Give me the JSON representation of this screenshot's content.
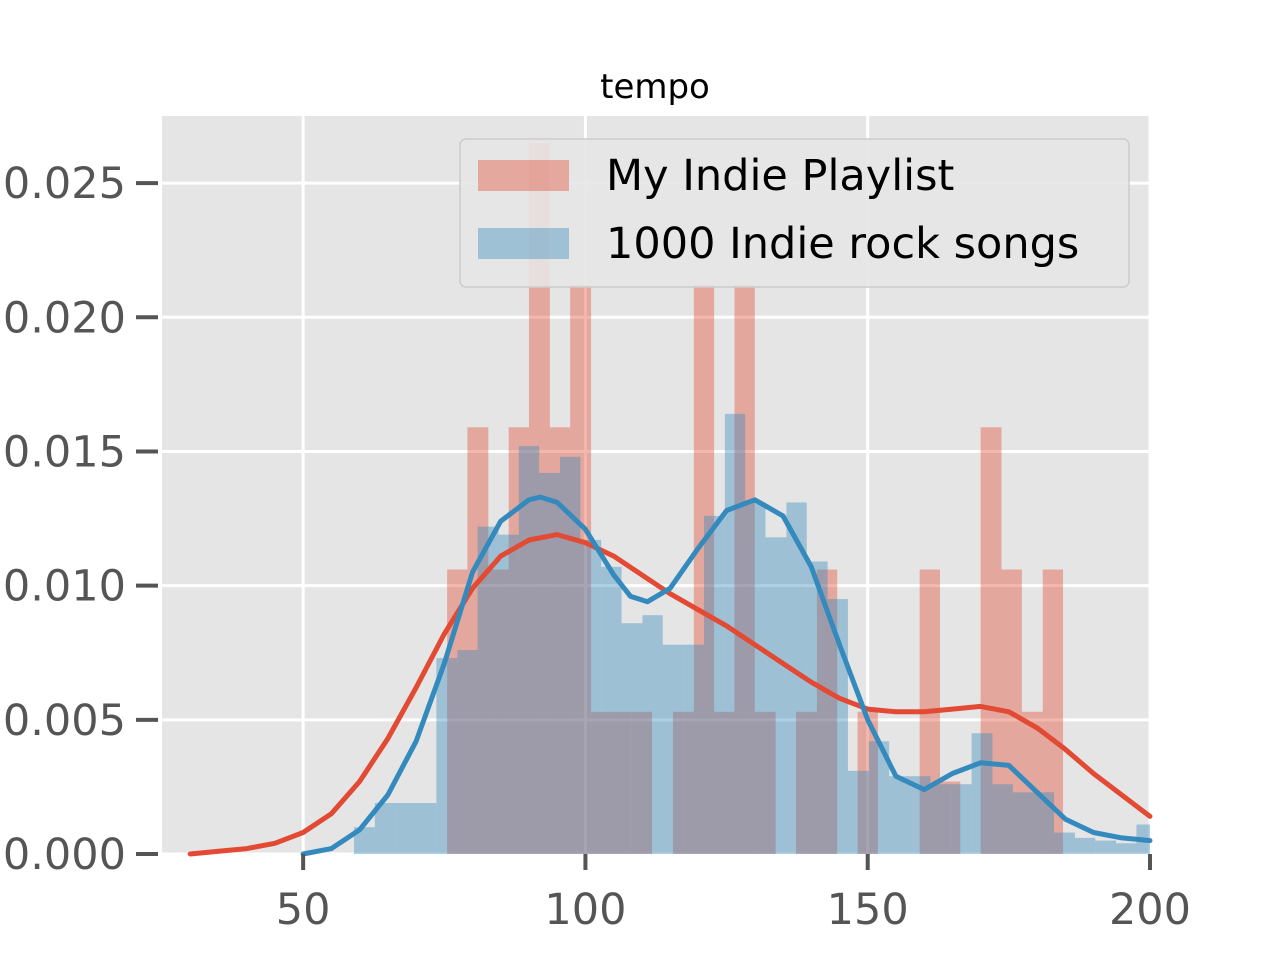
{
  "chart_data": {
    "type": "histogram",
    "title": "tempo",
    "xlabel": "",
    "ylabel": "",
    "xlim": [
      25,
      200
    ],
    "ylim": [
      0,
      0.0275
    ],
    "x_ticks": [
      50,
      100,
      150,
      200
    ],
    "x_tick_labels": [
      "50",
      "100",
      "150",
      "200"
    ],
    "y_ticks": [
      0,
      0.005,
      0.01,
      0.015,
      0.02,
      0.025
    ],
    "y_tick_labels": [
      "0.000",
      "0.005",
      "0.010",
      "0.015",
      "0.020",
      "0.025"
    ],
    "grid": true,
    "legend_position": "upper right",
    "series": [
      {
        "name": "My Indie Playlist",
        "color": "#E24A33",
        "bins": [
          [
            75.5,
            79.1,
            0.0106
          ],
          [
            79.1,
            82.8,
            0.0159
          ],
          [
            82.8,
            86.4,
            0.0106
          ],
          [
            86.4,
            90.0,
            0.0159
          ],
          [
            90.0,
            93.7,
            0.0265
          ],
          [
            93.7,
            97.3,
            0.0159
          ],
          [
            97.3,
            101.0,
            0.0212
          ],
          [
            101.0,
            104.6,
            0.0053
          ],
          [
            104.6,
            108.2,
            0.0053
          ],
          [
            108.2,
            111.8,
            0.0053
          ],
          [
            115.5,
            119.2,
            0.0053
          ],
          [
            119.2,
            122.8,
            0.0212
          ],
          [
            122.8,
            126.4,
            0.0053
          ],
          [
            126.4,
            130.0,
            0.0212
          ],
          [
            130.0,
            133.7,
            0.0053
          ],
          [
            137.3,
            141.0,
            0.0053
          ],
          [
            141.0,
            144.6,
            0.0106
          ],
          [
            148.2,
            151.8,
            0.0053
          ],
          [
            159.2,
            162.8,
            0.0106
          ],
          [
            162.8,
            166.4,
            0.0027
          ],
          [
            170.0,
            173.7,
            0.0159
          ],
          [
            173.7,
            177.3,
            0.0106
          ],
          [
            177.3,
            181.0,
            0.0053
          ],
          [
            181.0,
            184.6,
            0.0106
          ]
        ],
        "kde": [
          [
            30,
            0.0
          ],
          [
            35,
            0.0001
          ],
          [
            40,
            0.0002
          ],
          [
            45,
            0.0004
          ],
          [
            50,
            0.0008
          ],
          [
            55,
            0.0015
          ],
          [
            60,
            0.0027
          ],
          [
            65,
            0.0043
          ],
          [
            70,
            0.0062
          ],
          [
            75,
            0.0082
          ],
          [
            80,
            0.0099
          ],
          [
            85,
            0.0111
          ],
          [
            90,
            0.0117
          ],
          [
            95,
            0.0119
          ],
          [
            100,
            0.0116
          ],
          [
            105,
            0.0111
          ],
          [
            110,
            0.0104
          ],
          [
            115,
            0.0097
          ],
          [
            120,
            0.0091
          ],
          [
            125,
            0.0085
          ],
          [
            130,
            0.0078
          ],
          [
            135,
            0.0071
          ],
          [
            140,
            0.0064
          ],
          [
            145,
            0.0058
          ],
          [
            150,
            0.0054
          ],
          [
            155,
            0.0053
          ],
          [
            160,
            0.0053
          ],
          [
            165,
            0.0054
          ],
          [
            170,
            0.0055
          ],
          [
            175,
            0.0053
          ],
          [
            180,
            0.0047
          ],
          [
            185,
            0.0039
          ],
          [
            190,
            0.003
          ],
          [
            195,
            0.0022
          ],
          [
            200,
            0.0014
          ]
        ]
      },
      {
        "name": "1000 Indie rock songs",
        "color": "#348ABD",
        "bins": [
          [
            59.0,
            62.7,
            0.001
          ],
          [
            62.7,
            66.3,
            0.0019
          ],
          [
            66.3,
            70.0,
            0.0019
          ],
          [
            70.0,
            73.6,
            0.0019
          ],
          [
            73.6,
            77.3,
            0.0073
          ],
          [
            77.3,
            80.9,
            0.0076
          ],
          [
            80.9,
            84.6,
            0.0122
          ],
          [
            84.6,
            88.2,
            0.0119
          ],
          [
            88.2,
            91.8,
            0.0152
          ],
          [
            91.8,
            95.5,
            0.0142
          ],
          [
            95.5,
            99.1,
            0.0148
          ],
          [
            99.1,
            102.8,
            0.0117
          ],
          [
            102.8,
            106.4,
            0.0107
          ],
          [
            106.4,
            110.1,
            0.0086
          ],
          [
            110.1,
            113.7,
            0.0089
          ],
          [
            113.7,
            117.4,
            0.0078
          ],
          [
            117.4,
            121.0,
            0.0078
          ],
          [
            121.0,
            124.7,
            0.0126
          ],
          [
            124.7,
            128.3,
            0.0164
          ],
          [
            128.3,
            131.9,
            0.0131
          ],
          [
            131.9,
            135.6,
            0.0118
          ],
          [
            135.6,
            139.2,
            0.0131
          ],
          [
            139.2,
            142.9,
            0.0109
          ],
          [
            142.9,
            146.5,
            0.0095
          ],
          [
            146.5,
            150.2,
            0.0031
          ],
          [
            150.2,
            153.8,
            0.0042
          ],
          [
            153.8,
            157.5,
            0.0029
          ],
          [
            157.5,
            161.1,
            0.0029
          ],
          [
            161.1,
            164.8,
            0.0026
          ],
          [
            164.8,
            168.4,
            0.0026
          ],
          [
            168.4,
            172.1,
            0.0045
          ],
          [
            172.1,
            175.7,
            0.0026
          ],
          [
            175.7,
            179.4,
            0.0023
          ],
          [
            179.4,
            183.0,
            0.0023
          ],
          [
            183.0,
            186.7,
            0.0008
          ],
          [
            186.7,
            190.3,
            0.0006
          ],
          [
            190.3,
            194.0,
            0.0005
          ],
          [
            194.0,
            197.6,
            0.0004
          ],
          [
            197.6,
            201.3,
            0.0011
          ]
        ],
        "kde": [
          [
            50,
            0.0
          ],
          [
            55,
            0.0002
          ],
          [
            60,
            0.0009
          ],
          [
            65,
            0.0022
          ],
          [
            70,
            0.0042
          ],
          [
            75,
            0.0071
          ],
          [
            80,
            0.0105
          ],
          [
            85,
            0.0124
          ],
          [
            90,
            0.0132
          ],
          [
            92,
            0.0133
          ],
          [
            95,
            0.0131
          ],
          [
            100,
            0.0121
          ],
          [
            105,
            0.0104
          ],
          [
            108,
            0.0096
          ],
          [
            111,
            0.0094
          ],
          [
            115,
            0.0099
          ],
          [
            120,
            0.0114
          ],
          [
            125,
            0.0128
          ],
          [
            130,
            0.0132
          ],
          [
            135,
            0.0126
          ],
          [
            140,
            0.0107
          ],
          [
            145,
            0.0078
          ],
          [
            150,
            0.005
          ],
          [
            155,
            0.0029
          ],
          [
            160,
            0.0024
          ],
          [
            165,
            0.003
          ],
          [
            170,
            0.0034
          ],
          [
            175,
            0.0033
          ],
          [
            180,
            0.0023
          ],
          [
            185,
            0.0013
          ],
          [
            190,
            0.0008
          ],
          [
            195,
            0.0006
          ],
          [
            200,
            0.0005
          ]
        ]
      }
    ]
  }
}
